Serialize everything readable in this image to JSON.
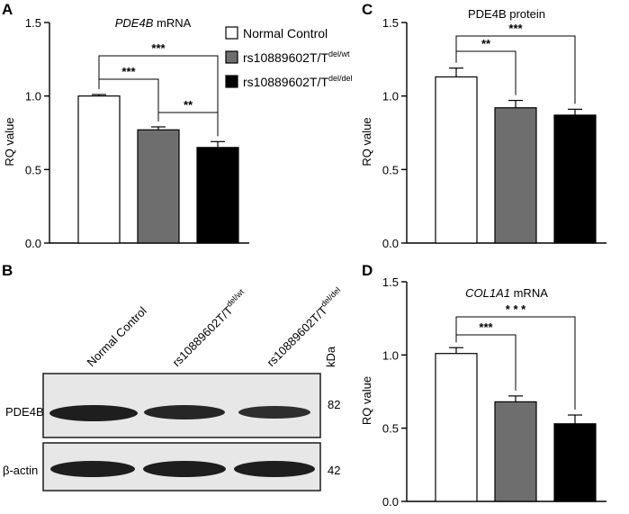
{
  "figure": {
    "panels": {
      "A": "A",
      "B": "B",
      "C": "C",
      "D": "D"
    }
  },
  "legend": {
    "items": [
      {
        "label": "Normal Control",
        "sup": "",
        "color": "#ffffff"
      },
      {
        "label": "rs10889602T/T",
        "sup": "del/wt",
        "color": "#6e6e6e"
      },
      {
        "label": "rs10889602T/T",
        "sup": "del/del",
        "color": "#000000"
      }
    ]
  },
  "chart_data": [
    {
      "panel": "A",
      "type": "bar",
      "title_italic": "PDE4B",
      "title_rest": " mRNA",
      "ylabel": "RQ value",
      "ylim": [
        0,
        1.5
      ],
      "yticks": [
        "0.0",
        "0.5",
        "1.0",
        "1.5"
      ],
      "categories": [
        "Normal Control",
        "rs10889602T/Tdel/wt",
        "rs10889602T/Tdel/del"
      ],
      "values": [
        1.0,
        0.77,
        0.65
      ],
      "errors": [
        0.01,
        0.02,
        0.04
      ],
      "colors": [
        "#ffffff",
        "#6e6e6e",
        "#000000"
      ],
      "significance": [
        {
          "from": 0,
          "to": 1,
          "label": "***"
        },
        {
          "from": 0,
          "to": 2,
          "label": "***"
        },
        {
          "from": 1,
          "to": 2,
          "label": "**"
        }
      ]
    },
    {
      "panel": "C",
      "type": "bar",
      "title_italic": "",
      "title_rest": "PDE4B protein",
      "ylabel": "RQ value",
      "ylim": [
        0,
        1.5
      ],
      "yticks": [
        "0.0",
        "0.5",
        "1.0",
        "1.5"
      ],
      "categories": [
        "Normal Control",
        "rs10889602T/Tdel/wt",
        "rs10889602T/Tdel/del"
      ],
      "values": [
        1.13,
        0.92,
        0.87
      ],
      "errors": [
        0.06,
        0.05,
        0.04
      ],
      "colors": [
        "#ffffff",
        "#6e6e6e",
        "#000000"
      ],
      "significance": [
        {
          "from": 0,
          "to": 1,
          "label": "**"
        },
        {
          "from": 0,
          "to": 2,
          "label": "***"
        }
      ]
    },
    {
      "panel": "D",
      "type": "bar",
      "title_italic": "COL1A1",
      "title_rest": " mRNA",
      "ylabel": "RQ value",
      "ylim": [
        0,
        1.5
      ],
      "yticks": [
        "0.0",
        "0.5",
        "1.0",
        "1.5"
      ],
      "categories": [
        "Normal Control",
        "rs10889602T/Tdel/wt",
        "rs10889602T/Tdel/del"
      ],
      "values": [
        1.01,
        0.68,
        0.53
      ],
      "errors": [
        0.04,
        0.04,
        0.06
      ],
      "colors": [
        "#ffffff",
        "#6e6e6e",
        "#000000"
      ],
      "significance": [
        {
          "from": 0,
          "to": 1,
          "label": "***"
        },
        {
          "from": 0,
          "to": 2,
          "label": "* * *"
        }
      ]
    }
  ],
  "blot": {
    "lanes": [
      {
        "text": "Normal Control",
        "sup": ""
      },
      {
        "text": "rs10889602T/T",
        "sup": "del/wt"
      },
      {
        "text": "rs10889602T/T",
        "sup": "del/del"
      }
    ],
    "kda_label": "kDa",
    "rows": [
      {
        "label": "PDE4B",
        "kda": "82"
      },
      {
        "label": "β-actin",
        "kda": "42"
      }
    ]
  }
}
